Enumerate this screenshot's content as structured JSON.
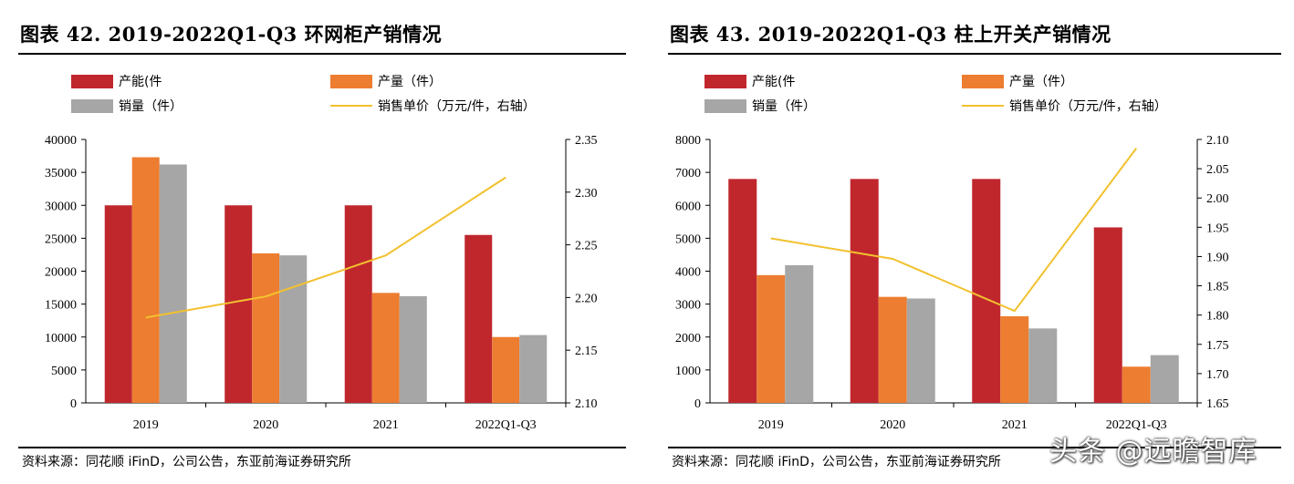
{
  "panels": [
    {
      "title": "图表 42. 2019-2022Q1-Q3 环网柜产销情况",
      "source": "资料来源：同花顺 iFinD，公司公告，东亚前海证券研究所"
    },
    {
      "title": "图表 43. 2019-2022Q1-Q3 柱上开关产销情况",
      "source": "资料来源：同花顺 iFinD，公司公告，东亚前海证券研究所"
    }
  ],
  "watermark": "头条 @远瞻智库",
  "colors": {
    "capacity": "#c0272d",
    "production": "#ed7d31",
    "sales": "#a6a6a6",
    "price": "#f2c12e"
  },
  "chart_data": [
    {
      "type": "bar",
      "title": "2019-2022Q1-Q3 环网柜产销情况",
      "categories": [
        "2019",
        "2020",
        "2021",
        "2022Q1-Q3"
      ],
      "series": [
        {
          "name": "产能(件",
          "kind": "bar",
          "color": "#c0272d",
          "values": [
            30000,
            30000,
            30000,
            25500
          ]
        },
        {
          "name": "产量（件）",
          "kind": "bar",
          "color": "#ed7d31",
          "values": [
            37300,
            22700,
            16700,
            10000
          ]
        },
        {
          "name": "销量（件）",
          "kind": "bar",
          "color": "#a6a6a6",
          "values": [
            36200,
            22400,
            16200,
            10300
          ]
        },
        {
          "name": "销售单价（万元/件，右轴）",
          "kind": "line",
          "axis": "right",
          "color": "#f2c12e",
          "values": [
            2.181,
            2.201,
            2.24,
            2.314
          ]
        }
      ],
      "ylim": [
        0,
        40000
      ],
      "yticks": [
        0,
        5000,
        10000,
        15000,
        20000,
        25000,
        30000,
        35000,
        40000
      ],
      "y2lim": [
        2.1,
        2.35
      ],
      "y2ticks": [
        "2.10",
        "2.15",
        "2.20",
        "2.25",
        "2.30",
        "2.35"
      ]
    },
    {
      "type": "bar",
      "title": "2019-2022Q1-Q3 柱上开关产销情况",
      "categories": [
        "2019",
        "2020",
        "2021",
        "2022Q1-Q3"
      ],
      "series": [
        {
          "name": "产能(件",
          "kind": "bar",
          "color": "#c0272d",
          "values": [
            6800,
            6800,
            6800,
            5330
          ]
        },
        {
          "name": "产量（件）",
          "kind": "bar",
          "color": "#ed7d31",
          "values": [
            3880,
            3220,
            2630,
            1100
          ]
        },
        {
          "name": "销量（件）",
          "kind": "bar",
          "color": "#a6a6a6",
          "values": [
            4180,
            3170,
            2260,
            1450
          ]
        },
        {
          "name": "销售单价（万元/件，右轴）",
          "kind": "line",
          "axis": "right",
          "color": "#f2c12e",
          "values": [
            1.931,
            1.896,
            1.807,
            2.085
          ]
        }
      ],
      "ylim": [
        0,
        8000
      ],
      "yticks": [
        0,
        1000,
        2000,
        3000,
        4000,
        5000,
        6000,
        7000,
        8000
      ],
      "y2lim": [
        1.65,
        2.1
      ],
      "y2ticks": [
        "1.65",
        "1.70",
        "1.75",
        "1.80",
        "1.85",
        "1.90",
        "1.95",
        "2.00",
        "2.05",
        "2.10"
      ]
    }
  ]
}
